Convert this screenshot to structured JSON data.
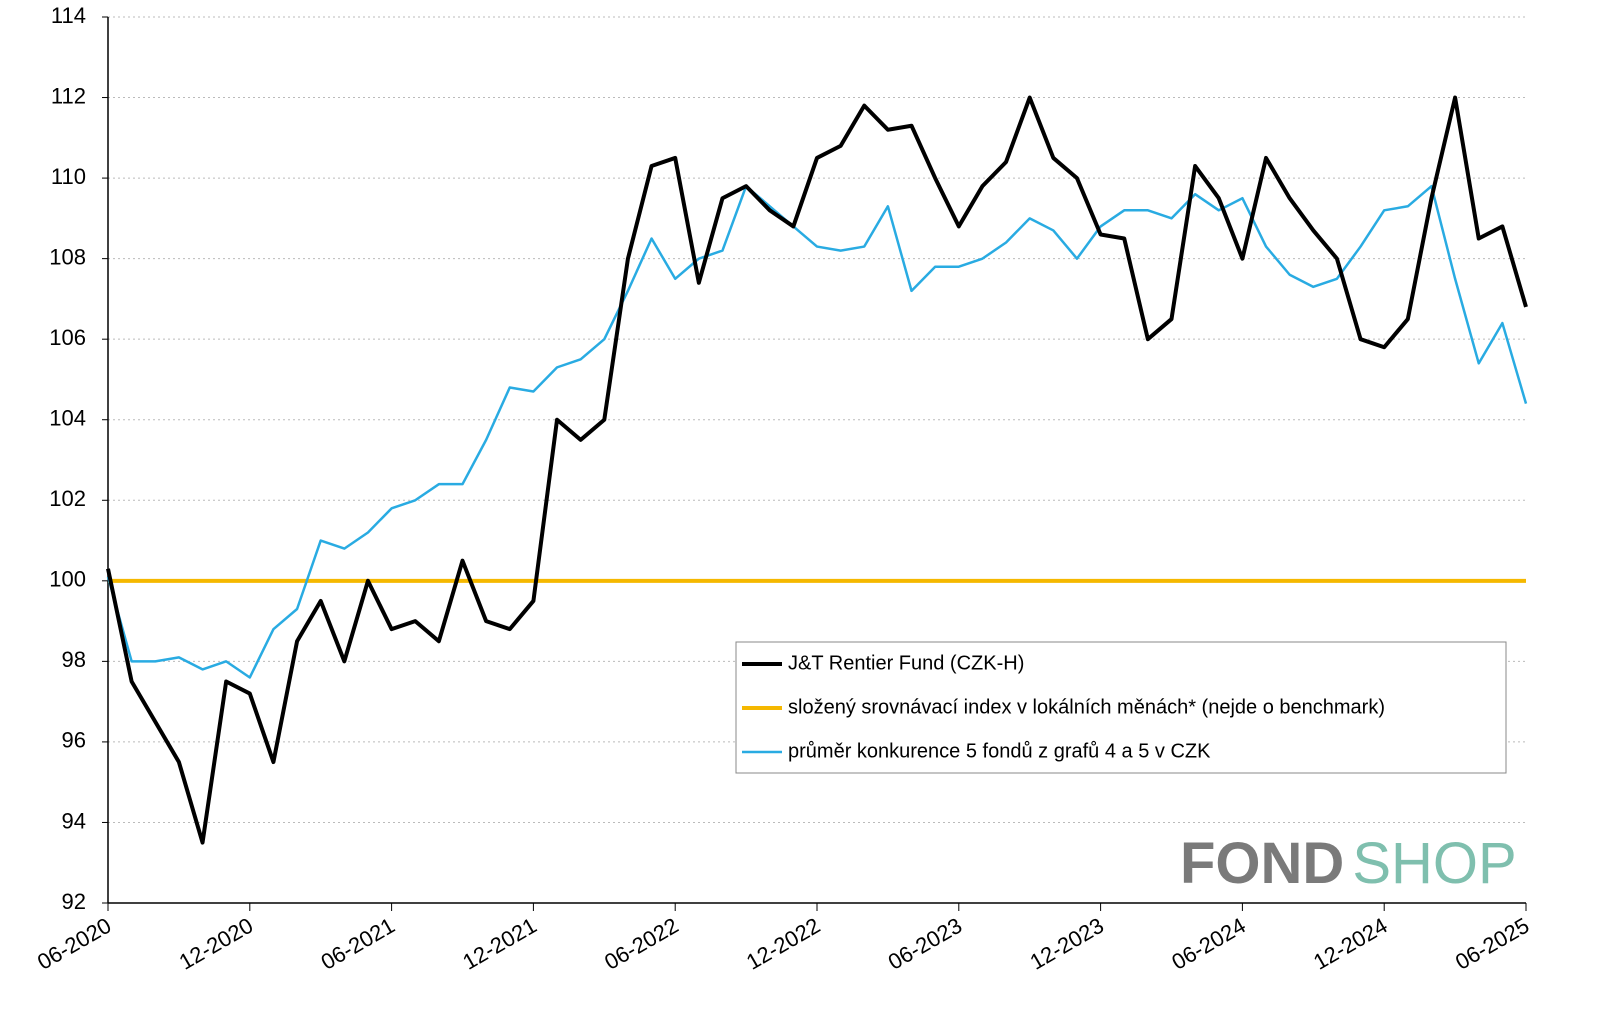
{
  "chart_data": {
    "type": "line",
    "categories": [
      "06-2020",
      null,
      null,
      null,
      null,
      null,
      "12-2020",
      null,
      null,
      null,
      null,
      null,
      "06-2021",
      null,
      null,
      null,
      null,
      null,
      "12-2021",
      null,
      null,
      null,
      null,
      null,
      "06-2022",
      null,
      null,
      null,
      null,
      null,
      "12-2022",
      null,
      null,
      null,
      null,
      null,
      "06-2023",
      null,
      null,
      null,
      null,
      null,
      "12-2023",
      null,
      null,
      null,
      null,
      null,
      "06-2024",
      null,
      null,
      null,
      null,
      null,
      "12-2024",
      null,
      null,
      null,
      null,
      null,
      "06-2025"
    ],
    "series": [
      {
        "name": "J&T Rentier Fund (CZK-H)",
        "color": "#000000",
        "width": 4,
        "values": [
          100.3,
          97.5,
          96.5,
          95.5,
          93.5,
          97.5,
          97.2,
          95.5,
          98.5,
          99.5,
          98.0,
          100.0,
          98.8,
          99.0,
          98.5,
          100.5,
          99.0,
          98.8,
          99.5,
          104.0,
          103.5,
          104.0,
          108.0,
          110.3,
          110.5,
          107.4,
          109.5,
          109.8,
          109.2,
          108.8,
          110.5,
          110.8,
          111.8,
          111.2,
          111.3,
          110.0,
          108.8,
          109.8,
          110.4,
          112.0,
          110.5,
          110.0,
          108.6,
          108.5,
          106.0,
          106.5,
          110.3,
          109.5,
          108.0,
          110.5,
          109.5,
          108.7,
          108.0,
          106.0,
          105.8,
          106.5,
          109.5,
          112.0,
          108.5,
          108.8,
          106.8
        ]
      },
      {
        "name": "složený srovnávací index v lokálních měnách* (nejde o benchmark)",
        "color": "#f5b800",
        "width": 4,
        "values": [
          100,
          100,
          100,
          100,
          100,
          100,
          100,
          100,
          100,
          100,
          100,
          100,
          100,
          100,
          100,
          100,
          100,
          100,
          100,
          100,
          100,
          100,
          100,
          100,
          100,
          100,
          100,
          100,
          100,
          100,
          100,
          100,
          100,
          100,
          100,
          100,
          100,
          100,
          100,
          100,
          100,
          100,
          100,
          100,
          100,
          100,
          100,
          100,
          100,
          100,
          100,
          100,
          100,
          100,
          100,
          100,
          100,
          100,
          100,
          100,
          100
        ]
      },
      {
        "name": "průměr konkurence 5 fondů z grafů 4 a 5 v CZK",
        "color": "#29abe2",
        "width": 2.5,
        "values": [
          100.1,
          98.0,
          98.0,
          98.1,
          97.8,
          98.0,
          97.6,
          98.8,
          99.3,
          101.0,
          100.8,
          101.2,
          101.8,
          102.0,
          102.4,
          102.4,
          103.5,
          104.8,
          104.7,
          105.3,
          105.5,
          106.0,
          107.2,
          108.5,
          107.5,
          108.0,
          108.2,
          109.8,
          109.3,
          108.8,
          108.3,
          108.2,
          108.3,
          109.3,
          107.2,
          107.8,
          107.8,
          108.0,
          108.4,
          109.0,
          108.7,
          108.0,
          108.8,
          109.2,
          109.2,
          109.0,
          109.6,
          109.2,
          109.5,
          108.3,
          107.6,
          107.3,
          107.5,
          108.3,
          109.2,
          109.3,
          109.8,
          107.5,
          105.4,
          106.4,
          104.4
        ]
      }
    ],
    "ylim": [
      92,
      114
    ],
    "yticks": [
      92,
      94,
      96,
      98,
      100,
      102,
      104,
      106,
      108,
      110,
      112,
      114
    ],
    "grid": true,
    "legend": "lower right",
    "watermark": {
      "left": "FOND",
      "right": "SHOP"
    }
  }
}
